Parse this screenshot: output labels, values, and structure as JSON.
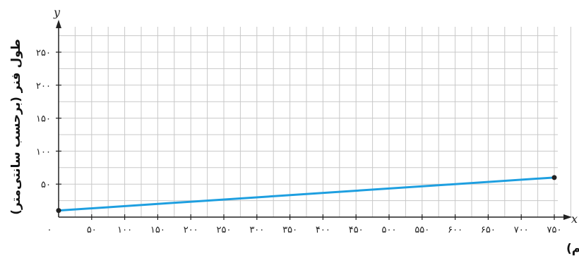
{
  "chart_data": {
    "type": "line",
    "xlabel": "جرم وزنه (برحسب گرم)",
    "ylabel": "طول فنر (برحسب سانتی‌متر)",
    "x_axis_letter": "x",
    "y_axis_letter": "y",
    "x_ticks": [
      0,
      50,
      100,
      150,
      200,
      250,
      300,
      350,
      400,
      450,
      500,
      550,
      600,
      650,
      700,
      750
    ],
    "x_tick_labels": [
      "۰",
      "۵۰",
      "۱۰۰",
      "۱۵۰",
      "۲۰۰",
      "۲۵۰",
      "۳۰۰",
      "۳۵۰",
      "۴۰۰",
      "۴۵۰",
      "۵۰۰",
      "۵۵۰",
      "۶۰۰",
      "۶۵۰",
      "۷۰۰",
      "۷۵۰"
    ],
    "y_ticks": [
      50,
      100,
      150,
      200,
      250
    ],
    "y_tick_labels": [
      "۵۰",
      "۱۰۰",
      "۱۵۰",
      "۲۰۰",
      "۲۵۰"
    ],
    "xlim": [
      0,
      775
    ],
    "ylim": [
      0,
      285
    ],
    "grid": true,
    "series": [
      {
        "x": [
          0,
          750
        ],
        "y": [
          10,
          60
        ]
      }
    ],
    "line_color": "#1e9fe0",
    "grid_color": "#c8c8c8",
    "axis_color": "#222222"
  }
}
